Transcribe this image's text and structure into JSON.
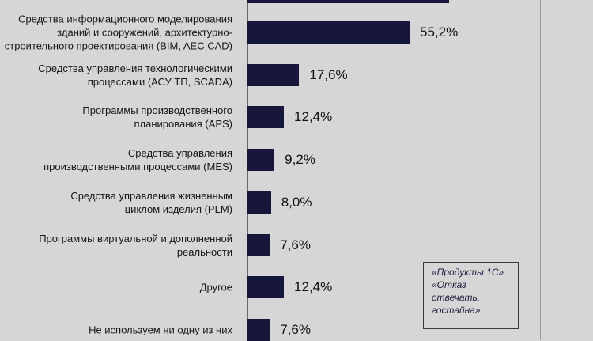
{
  "chart_data": {
    "type": "bar",
    "orientation": "horizontal",
    "categories": [
      "Средства информационного моделирования\nзданий и  сооружений, архитектурно-\nстроительного проектирования (BIM,  AEC CAD)",
      "Средства управления технологическими\nпроцессами (АСУ ТП, SCADA)",
      "Программы производственного\nпланирования (APS)",
      "Средства управления\nпроизводственными процессами (MES)",
      "Средства управления жизненным\nциклом изделия (PLM)",
      "Программы виртуальной и дополненной\nреальности",
      "Другое",
      "Не используем ни одну из них"
    ],
    "values": [
      55.2,
      17.6,
      12.4,
      9.2,
      8.0,
      7.6,
      12.4,
      7.6
    ],
    "value_labels": [
      "55,2%",
      "17,6%",
      "12,4%",
      "9,2%",
      "8,0%",
      "7,6%",
      "12,4%",
      "7,6%"
    ],
    "xlim": [
      0,
      100
    ],
    "grid": false,
    "bar_color": "#16163a",
    "background": "#d6d6d6"
  },
  "annotation": {
    "lines": [
      "«Продукты 1С»",
      "«Отказ",
      "отвечать,",
      "гостайна»"
    ],
    "points_to_category": "Другое"
  }
}
